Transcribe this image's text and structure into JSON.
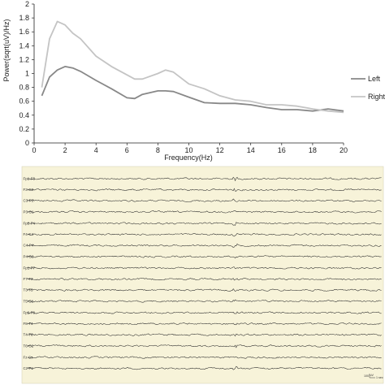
{
  "chart_data": {
    "type": "line",
    "xlabel": "Frequency(Hz)",
    "ylabel": "Power(sqrt(uV)/Hz)",
    "xlim": [
      0,
      20
    ],
    "ylim": [
      0,
      2
    ],
    "xticks": [
      "0",
      "2",
      "4",
      "6",
      "8",
      "10",
      "12",
      "14",
      "16",
      "18",
      "20"
    ],
    "yticks": [
      "0",
      "0.2",
      "0.4",
      "0.6",
      "0.8",
      "1",
      "1.2",
      "1.4",
      "1.6",
      "1.8",
      "2"
    ],
    "legend_position": "right",
    "grid": false,
    "series": [
      {
        "name": "Left",
        "color": "#888888",
        "x": [
          0.5,
          1,
          1.5,
          2,
          2.5,
          3,
          4,
          5,
          6,
          6.5,
          7,
          8,
          8.5,
          9,
          10,
          11,
          12,
          13,
          14,
          15,
          16,
          17,
          18,
          19,
          20
        ],
        "y": [
          0.68,
          0.95,
          1.05,
          1.1,
          1.08,
          1.03,
          0.9,
          0.78,
          0.65,
          0.64,
          0.7,
          0.75,
          0.75,
          0.74,
          0.66,
          0.58,
          0.57,
          0.57,
          0.55,
          0.51,
          0.48,
          0.48,
          0.46,
          0.49,
          0.46
        ]
      },
      {
        "name": "Right",
        "color": "#c4c4c4",
        "x": [
          0.5,
          1,
          1.5,
          2,
          2.5,
          3,
          4,
          5,
          6,
          6.5,
          7,
          8,
          8.5,
          9,
          10,
          11,
          12,
          13,
          14,
          15,
          16,
          17,
          18,
          19,
          20
        ],
        "y": [
          0.8,
          1.5,
          1.75,
          1.7,
          1.58,
          1.5,
          1.25,
          1.1,
          0.98,
          0.92,
          0.92,
          1.0,
          1.05,
          1.02,
          0.85,
          0.78,
          0.68,
          0.62,
          0.6,
          0.55,
          0.55,
          0.53,
          0.49,
          0.46,
          0.44
        ]
      }
    ]
  },
  "eeg": {
    "background": "#f7f3d9",
    "channels": [
      [
        "Fp1-F3",
        "F3-C3",
        "C3-P3",
        "P3-O1"
      ],
      [
        "Fp2-F4",
        "F4-C4",
        "C4-P4",
        "P4-O2"
      ],
      [
        "Fp1-F7",
        "F7-T3",
        "T3-T5",
        "T5-O1"
      ],
      [
        "Fp2-F8",
        "F8-T4",
        "T4-T6",
        "T6-O2"
      ],
      [
        "Fz-Cz",
        "Cz-Pz"
      ]
    ],
    "scale_amplitude": "100",
    "scale_unit": "uV",
    "scale_time": "1 sec"
  }
}
